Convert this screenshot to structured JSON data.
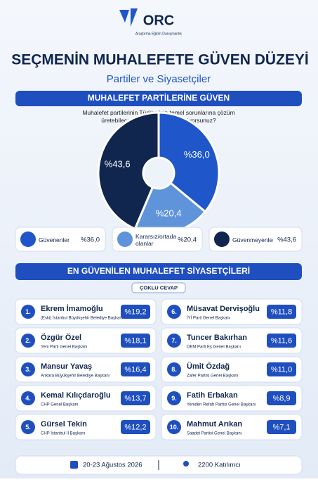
{
  "header": {
    "logo": "ORC",
    "logo_sub": "Araştırma Eğitim Danışmanlık",
    "title": "SEÇMENİN MUHALEFETE GÜVEN DÜZEYİ",
    "subtitle": "Partiler ve Siyasetçiler"
  },
  "chart_data": {
    "type": "pie",
    "title": "MUHALEFET PARTİLERİNE GÜVEN",
    "question": "Muhalefet partilerinin Türkiye'nin temel sorunlarına çözüm üretebileceğine ne ölçüde güveniyorsunuz?",
    "categories": [
      "Güvenenler",
      "Kararsız/ortada olanlar",
      "Güvenmeyenler"
    ],
    "values": [
      36.0,
      20.4,
      43.6
    ],
    "value_labels": [
      "%36,0",
      "%20,4",
      "%43,6"
    ],
    "colors": [
      "#1f56c9",
      "#5f93da",
      "#10264f"
    ]
  },
  "ranking": {
    "title": "EN GÜVENİLEN MUHALEFET SİYASETÇİLERİ",
    "badge": "ÇOKLU CEVAP",
    "items": [
      {
        "rank": "1.",
        "name": "Ekrem İmamoğlu",
        "role": "(Eski) İstanbul Büyükşehir Belediye Başkanı",
        "value": 19.2,
        "value_label": "%19,2"
      },
      {
        "rank": "2.",
        "name": "Özgür Özel",
        "role": "Yeni Parti Genel Başkanı",
        "value": 18.1,
        "value_label": "%18,1"
      },
      {
        "rank": "3.",
        "name": "Mansur Yavaş",
        "role": "Ankara Büyükşehir Belediye Başkanı",
        "value": 16.4,
        "value_label": "%16,4"
      },
      {
        "rank": "4.",
        "name": "Kemal Kılıçdaroğlu",
        "role": "CHP Genel Başkanı",
        "value": 13.7,
        "value_label": "%13,7"
      },
      {
        "rank": "5.",
        "name": "Gürsel Tekin",
        "role": "CHP İstanbul İl Başkanı",
        "value": 12.2,
        "value_label": "%12,2"
      },
      {
        "rank": "6.",
        "name": "Müsavat Dervişoğlu",
        "role": "İYİ Parti Genel Başkanı",
        "value": 11.8,
        "value_label": "%11,8"
      },
      {
        "rank": "7.",
        "name": "Tuncer Bakırhan",
        "role": "DEM Parti Eş Genel Başkanı",
        "value": 11.6,
        "value_label": "%11,6"
      },
      {
        "rank": "8.",
        "name": "Ümit Özdağ",
        "role": "Zafer Partisi Genel Başkanı",
        "value": 11.0,
        "value_label": "%11,0"
      },
      {
        "rank": "9.",
        "name": "Fatih Erbakan",
        "role": "Yeniden Refah Partisi Genel Başkanı",
        "value": 8.9,
        "value_label": "%8,9"
      },
      {
        "rank": "10.",
        "name": "Mahmut Arıkan",
        "role": "Saadet Partisi Genel Başkanı",
        "value": 7.1,
        "value_label": "%7,1"
      }
    ]
  },
  "footer": {
    "date": "20-23 Ağustos 2026",
    "participants": "2200 Katılımcı"
  }
}
